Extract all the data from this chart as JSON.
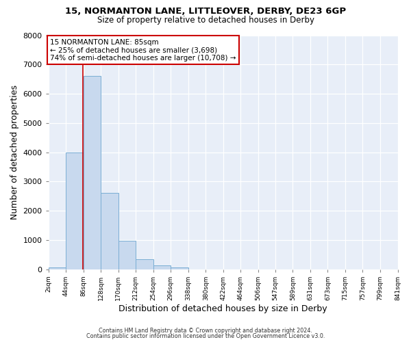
{
  "title1": "15, NORMANTON LANE, LITTLEOVER, DERBY, DE23 6GP",
  "title2": "Size of property relative to detached houses in Derby",
  "xlabel": "Distribution of detached houses by size in Derby",
  "ylabel": "Number of detached properties",
  "bin_edges": [
    2,
    44,
    86,
    128,
    170,
    212,
    254,
    296,
    338,
    380,
    422,
    464,
    506,
    547,
    589,
    631,
    673,
    715,
    757,
    799,
    841
  ],
  "bin_counts": [
    50,
    3980,
    6620,
    2620,
    960,
    330,
    130,
    50,
    0,
    0,
    0,
    0,
    0,
    0,
    0,
    0,
    0,
    0,
    0,
    0
  ],
  "bar_color": "#c8d9ee",
  "bar_edge_color": "#7aaed4",
  "property_size": 85,
  "property_line_color": "#cc0000",
  "annotation_line1": "15 NORMANTON LANE: 85sqm",
  "annotation_line2": "← 25% of detached houses are smaller (3,698)",
  "annotation_line3": "74% of semi-detached houses are larger (10,708) →",
  "annotation_box_color": "#ffffff",
  "annotation_box_edge_color": "#cc0000",
  "ylim": [
    0,
    8000
  ],
  "yticks": [
    0,
    1000,
    2000,
    3000,
    4000,
    5000,
    6000,
    7000,
    8000
  ],
  "tick_labels": [
    "2sqm",
    "44sqm",
    "86sqm",
    "128sqm",
    "170sqm",
    "212sqm",
    "254sqm",
    "296sqm",
    "338sqm",
    "380sqm",
    "422sqm",
    "464sqm",
    "506sqm",
    "547sqm",
    "589sqm",
    "631sqm",
    "673sqm",
    "715sqm",
    "757sqm",
    "799sqm",
    "841sqm"
  ],
  "footer1": "Contains HM Land Registry data © Crown copyright and database right 2024.",
  "footer2": "Contains public sector information licensed under the Open Government Licence v3.0.",
  "bg_color": "#ffffff",
  "plot_bg_color": "#e8eef8"
}
